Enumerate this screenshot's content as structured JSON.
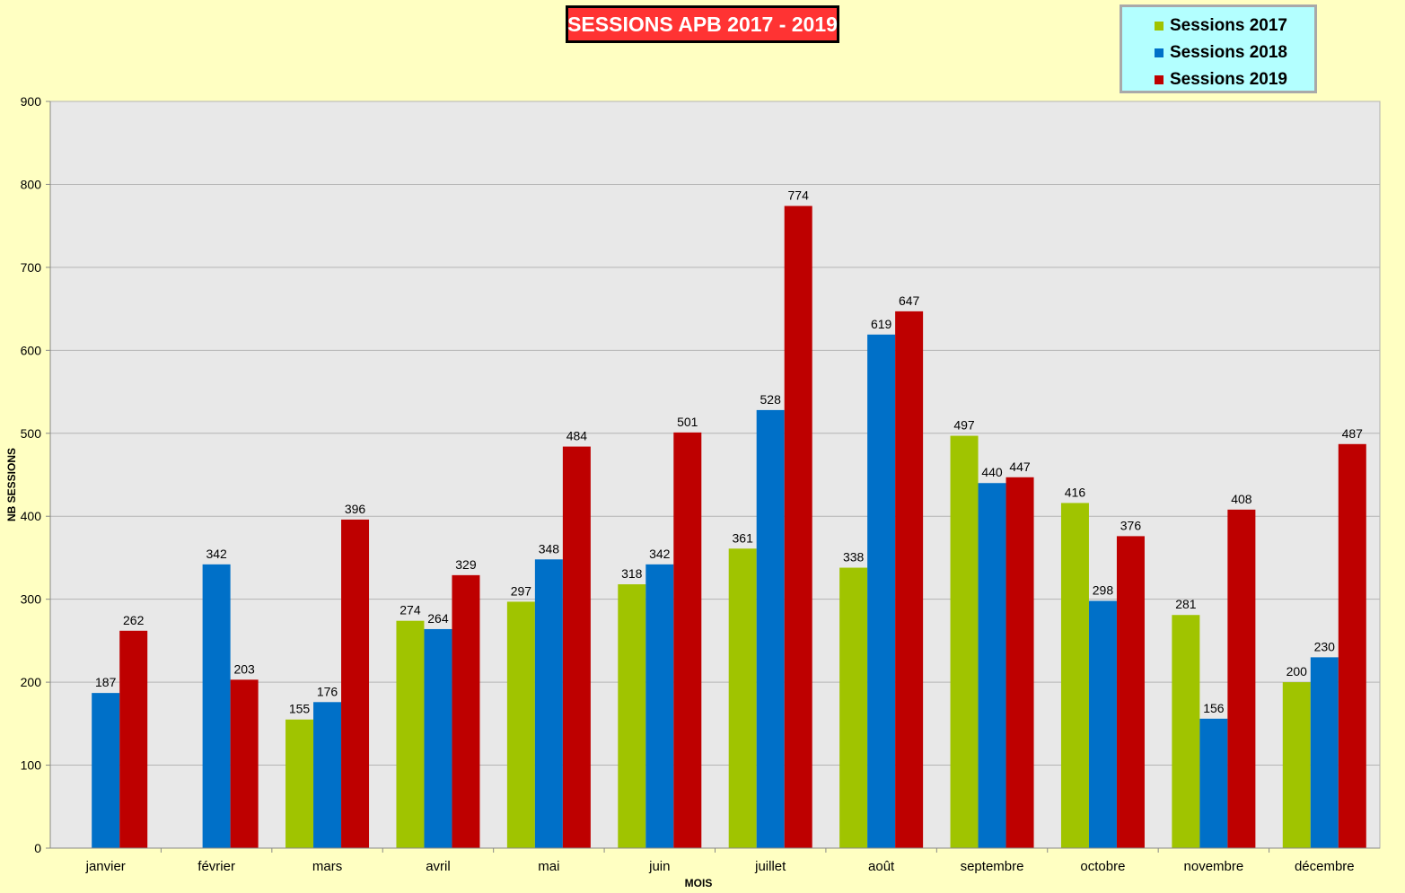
{
  "chart_data": {
    "type": "bar",
    "title": "SESSIONS APB 2017 - 2019",
    "xlabel": "MOIS",
    "ylabel": "NB SESSIONS",
    "ylim": [
      0,
      900
    ],
    "yticks": [
      0,
      100,
      200,
      300,
      400,
      500,
      600,
      700,
      800,
      900
    ],
    "grid": true,
    "legend_position": "top-right",
    "categories": [
      "janvier",
      "février",
      "mars",
      "avril",
      "mai",
      "juin",
      "juillet",
      "août",
      "septembre",
      "octobre",
      "novembre",
      "décembre"
    ],
    "series": [
      {
        "name": "Sessions 2017",
        "color": "#A0C400",
        "values": [
          null,
          null,
          155,
          274,
          297,
          318,
          361,
          338,
          497,
          416,
          281,
          200
        ]
      },
      {
        "name": "Sessions 2018",
        "color": "#0070C8",
        "values": [
          187,
          342,
          176,
          264,
          348,
          342,
          528,
          619,
          440,
          298,
          156,
          230
        ]
      },
      {
        "name": "Sessions 2019",
        "color": "#BE0000",
        "values": [
          262,
          203,
          396,
          329,
          484,
          501,
          774,
          647,
          447,
          376,
          408,
          487
        ]
      }
    ]
  },
  "colors": {
    "page_background": "#FFFFC2",
    "plot_background": "#E8E8E8",
    "title_background": "#FF3333",
    "legend_background": "#B3FFFF"
  }
}
